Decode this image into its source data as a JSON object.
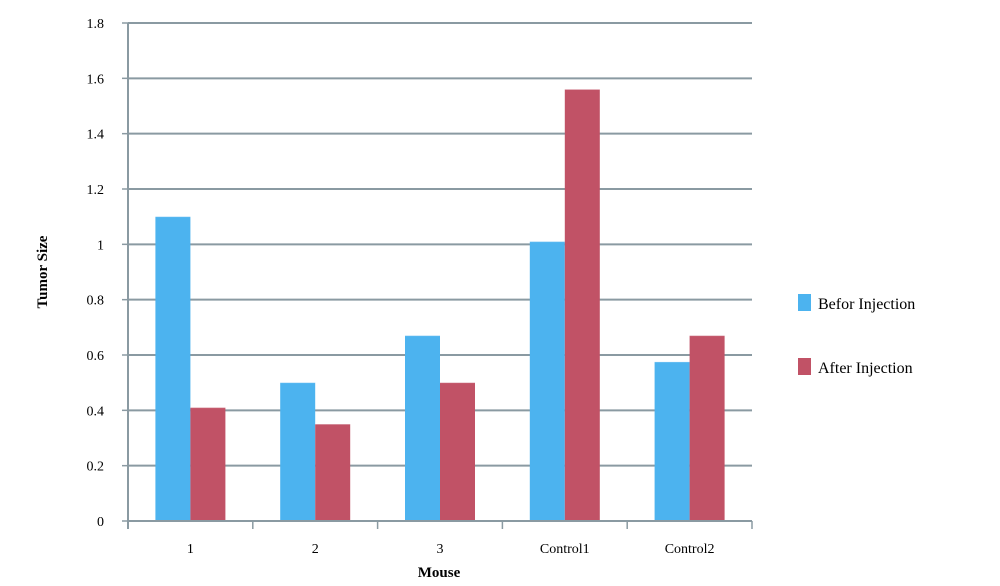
{
  "chart_data": {
    "type": "bar",
    "title": "",
    "xlabel": "Mouse",
    "ylabel": "Tumor Size",
    "categories": [
      "1",
      "2",
      "3",
      "Control1",
      "Control2"
    ],
    "series": [
      {
        "name": "Befor Injection",
        "values": [
          1.1,
          0.5,
          0.67,
          1.01,
          0.575
        ],
        "color": "#4cb3ef"
      },
      {
        "name": "After Injection",
        "values": [
          0.41,
          0.35,
          0.5,
          1.56,
          0.67
        ],
        "color": "#c15266"
      }
    ],
    "ylim": [
      0,
      1.8
    ],
    "yticks": [
      "0",
      "0.2",
      "0.4",
      "0.6",
      "0.8",
      "1",
      "1.2",
      "1.4",
      "1.6",
      "1.8"
    ],
    "grid": true,
    "legend_position": "right",
    "colors": {
      "grid": "#8a9aa2",
      "axis": "#8a9aa2"
    }
  }
}
